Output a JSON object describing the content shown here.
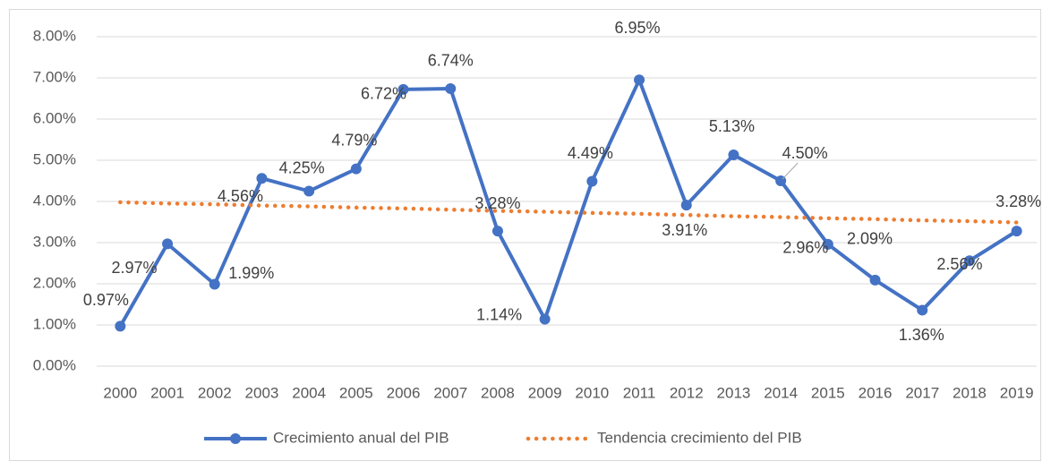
{
  "chart_data": {
    "type": "line",
    "categories": [
      "2000",
      "2001",
      "2002",
      "2003",
      "2004",
      "2005",
      "2006",
      "2007",
      "2008",
      "2009",
      "2010",
      "2011",
      "2012",
      "2013",
      "2014",
      "2015",
      "2016",
      "2017",
      "2018",
      "2019"
    ],
    "series": [
      {
        "name": "Crecimiento anual del PIB",
        "color": "#4472c4",
        "values": [
          0.97,
          2.97,
          1.99,
          4.56,
          4.25,
          4.79,
          6.72,
          6.74,
          3.28,
          1.14,
          4.49,
          6.95,
          3.91,
          5.13,
          4.5,
          2.96,
          2.09,
          1.36,
          2.56,
          3.28
        ],
        "value_labels": [
          "0.97%",
          "2.97%",
          "1.99%",
          "4.56%",
          "4.25%",
          "4.79%",
          "6.72%",
          "6.74%",
          "3.28%",
          "1.14%",
          "4.49%",
          "6.95%",
          "3.91%",
          "5.13%",
          "4.50%",
          "2.96%",
          "2.09%",
          "1.36%",
          "2.56%",
          "3.28%"
        ]
      },
      {
        "name": "Tendencia crecimiento del PIB",
        "color": "#ed7d31",
        "values": [
          3.98,
          3.95,
          3.93,
          3.9,
          3.88,
          3.85,
          3.83,
          3.8,
          3.77,
          3.75,
          3.72,
          3.7,
          3.67,
          3.64,
          3.62,
          3.59,
          3.57,
          3.54,
          3.52,
          3.49
        ]
      }
    ],
    "ylim": [
      0,
      8
    ],
    "yticks": [
      {
        "value": 0,
        "label": "0.00%"
      },
      {
        "value": 1,
        "label": "1.00%"
      },
      {
        "value": 2,
        "label": "2.00%"
      },
      {
        "value": 3,
        "label": "3.00%"
      },
      {
        "value": 4,
        "label": "4.00%"
      },
      {
        "value": 5,
        "label": "5.00%"
      },
      {
        "value": 6,
        "label": "6.00%"
      },
      {
        "value": 7,
        "label": "7.00%"
      },
      {
        "value": 8,
        "label": "8.00%"
      }
    ],
    "grid": true,
    "legend": "bottom"
  }
}
